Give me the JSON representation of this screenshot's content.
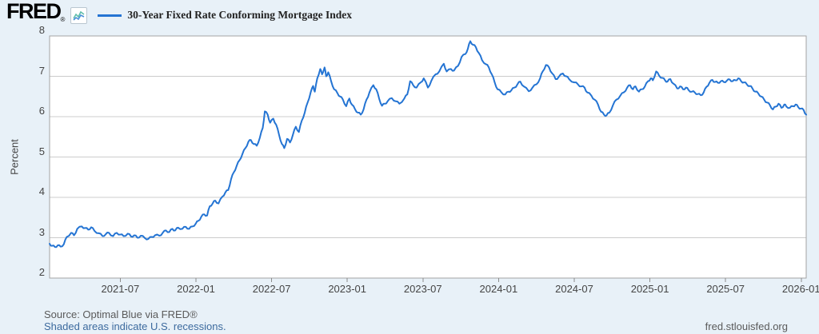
{
  "header": {
    "logo_text": "FRED",
    "logo_registered": "®",
    "legend": {
      "series_label": "30-Year Fixed Rate Conforming Mortgage Index",
      "swatch_color": "#2474d3"
    }
  },
  "chart_data": {
    "type": "line",
    "title": "30-Year Fixed Rate Conforming Mortgage Index",
    "xlabel": "",
    "ylabel": "Percent",
    "ylim": [
      2,
      8
    ],
    "y_ticks": [
      2,
      3,
      4,
      5,
      6,
      7,
      8
    ],
    "y_gridlines": [
      3,
      4,
      5,
      6,
      7
    ],
    "x_ticks": [
      "2021-07",
      "2022-01",
      "2022-07",
      "2023-01",
      "2023-07",
      "2024-01",
      "2024-07",
      "2025-01",
      "2025-07",
      "2026-01"
    ],
    "x_domain": [
      "2021-01-13",
      "2026-01-13"
    ],
    "grid": "horizontal",
    "legend_position": "top-header",
    "series": [
      {
        "name": "30-Year Fixed Rate Conforming Mortgage Index",
        "color": "#2474d3",
        "points": [
          [
            "2021-01-13",
            2.85
          ],
          [
            "2021-01-19",
            2.8
          ],
          [
            "2021-01-26",
            2.77
          ],
          [
            "2021-02-02",
            2.81
          ],
          [
            "2021-02-09",
            2.78
          ],
          [
            "2021-02-17",
            2.84
          ],
          [
            "2021-02-24",
            3.02
          ],
          [
            "2021-03-04",
            3.12
          ],
          [
            "2021-03-11",
            3.06
          ],
          [
            "2021-03-19",
            3.22
          ],
          [
            "2021-03-30",
            3.28
          ],
          [
            "2021-04-07",
            3.24
          ],
          [
            "2021-04-15",
            3.2
          ],
          [
            "2021-04-22",
            3.26
          ],
          [
            "2021-04-30",
            3.17
          ],
          [
            "2021-05-10",
            3.11
          ],
          [
            "2021-05-19",
            3.04
          ],
          [
            "2021-05-27",
            3.09
          ],
          [
            "2021-06-04",
            3.12
          ],
          [
            "2021-06-14",
            3.04
          ],
          [
            "2021-06-23",
            3.12
          ],
          [
            "2021-07-01",
            3.08
          ],
          [
            "2021-07-09",
            3.04
          ],
          [
            "2021-07-19",
            3.1
          ],
          [
            "2021-07-27",
            3.03
          ],
          [
            "2021-08-04",
            3.06
          ],
          [
            "2021-08-12",
            3.0
          ],
          [
            "2021-08-20",
            3.05
          ],
          [
            "2021-08-30",
            2.99
          ],
          [
            "2021-09-08",
            2.97
          ],
          [
            "2021-09-16",
            3.02
          ],
          [
            "2021-09-24",
            3.06
          ],
          [
            "2021-10-04",
            3.05
          ],
          [
            "2021-10-12",
            3.12
          ],
          [
            "2021-10-20",
            3.18
          ],
          [
            "2021-10-28",
            3.14
          ],
          [
            "2021-11-05",
            3.22
          ],
          [
            "2021-11-12",
            3.18
          ],
          [
            "2021-11-19",
            3.25
          ],
          [
            "2021-11-29",
            3.22
          ],
          [
            "2021-12-07",
            3.27
          ],
          [
            "2021-12-15",
            3.22
          ],
          [
            "2021-12-23",
            3.28
          ],
          [
            "2021-12-31",
            3.35
          ],
          [
            "2022-01-07",
            3.42
          ],
          [
            "2022-01-14",
            3.52
          ],
          [
            "2022-01-21",
            3.58
          ],
          [
            "2022-01-28",
            3.55
          ],
          [
            "2022-02-04",
            3.78
          ],
          [
            "2022-02-11",
            3.85
          ],
          [
            "2022-02-17",
            3.92
          ],
          [
            "2022-02-25",
            3.85
          ],
          [
            "2022-03-04",
            4.02
          ],
          [
            "2022-03-11",
            4.12
          ],
          [
            "2022-03-18",
            4.18
          ],
          [
            "2022-03-25",
            4.45
          ],
          [
            "2022-04-01",
            4.62
          ],
          [
            "2022-04-08",
            4.78
          ],
          [
            "2022-04-15",
            4.92
          ],
          [
            "2022-04-22",
            5.08
          ],
          [
            "2022-04-29",
            5.22
          ],
          [
            "2022-05-06",
            5.38
          ],
          [
            "2022-05-12",
            5.42
          ],
          [
            "2022-05-19",
            5.32
          ],
          [
            "2022-05-26",
            5.28
          ],
          [
            "2022-06-03",
            5.48
          ],
          [
            "2022-06-10",
            5.72
          ],
          [
            "2022-06-15",
            6.13
          ],
          [
            "2022-06-22",
            6.05
          ],
          [
            "2022-06-28",
            5.85
          ],
          [
            "2022-07-05",
            5.95
          ],
          [
            "2022-07-12",
            5.8
          ],
          [
            "2022-07-19",
            5.55
          ],
          [
            "2022-07-26",
            5.32
          ],
          [
            "2022-08-01",
            5.22
          ],
          [
            "2022-08-08",
            5.45
          ],
          [
            "2022-08-15",
            5.36
          ],
          [
            "2022-08-22",
            5.55
          ],
          [
            "2022-08-29",
            5.75
          ],
          [
            "2022-09-06",
            5.62
          ],
          [
            "2022-09-13",
            5.9
          ],
          [
            "2022-09-20",
            6.1
          ],
          [
            "2022-09-27",
            6.35
          ],
          [
            "2022-10-04",
            6.6
          ],
          [
            "2022-10-10",
            6.76
          ],
          [
            "2022-10-14",
            6.62
          ],
          [
            "2022-10-20",
            6.95
          ],
          [
            "2022-10-27",
            7.18
          ],
          [
            "2022-11-01",
            7.05
          ],
          [
            "2022-11-07",
            7.22
          ],
          [
            "2022-11-11",
            7.0
          ],
          [
            "2022-11-16",
            7.1
          ],
          [
            "2022-11-23",
            6.88
          ],
          [
            "2022-11-30",
            6.68
          ],
          [
            "2022-12-08",
            6.58
          ],
          [
            "2022-12-14",
            6.5
          ],
          [
            "2022-12-21",
            6.42
          ],
          [
            "2022-12-29",
            6.26
          ],
          [
            "2023-01-06",
            6.45
          ],
          [
            "2023-01-12",
            6.3
          ],
          [
            "2023-01-20",
            6.18
          ],
          [
            "2023-01-27",
            6.1
          ],
          [
            "2023-02-03",
            6.05
          ],
          [
            "2023-02-10",
            6.18
          ],
          [
            "2023-02-17",
            6.42
          ],
          [
            "2023-02-24",
            6.6
          ],
          [
            "2023-03-03",
            6.78
          ],
          [
            "2023-03-10",
            6.68
          ],
          [
            "2023-03-17",
            6.45
          ],
          [
            "2023-03-24",
            6.27
          ],
          [
            "2023-03-31",
            6.32
          ],
          [
            "2023-04-07",
            6.38
          ],
          [
            "2023-04-17",
            6.46
          ],
          [
            "2023-04-27",
            6.38
          ],
          [
            "2023-05-05",
            6.32
          ],
          [
            "2023-05-17",
            6.45
          ],
          [
            "2023-05-24",
            6.55
          ],
          [
            "2023-05-31",
            6.88
          ],
          [
            "2023-06-08",
            6.78
          ],
          [
            "2023-06-16",
            6.72
          ],
          [
            "2023-06-26",
            6.85
          ],
          [
            "2023-07-03",
            6.95
          ],
          [
            "2023-07-13",
            6.72
          ],
          [
            "2023-07-21",
            6.88
          ],
          [
            "2023-08-01",
            7.05
          ],
          [
            "2023-08-10",
            7.12
          ],
          [
            "2023-08-21",
            7.31
          ],
          [
            "2023-08-28",
            7.12
          ],
          [
            "2023-09-08",
            7.18
          ],
          [
            "2023-09-15",
            7.14
          ],
          [
            "2023-09-25",
            7.26
          ],
          [
            "2023-10-03",
            7.48
          ],
          [
            "2023-10-12",
            7.55
          ],
          [
            "2023-10-18",
            7.68
          ],
          [
            "2023-10-24",
            7.87
          ],
          [
            "2023-10-31",
            7.78
          ],
          [
            "2023-11-07",
            7.72
          ],
          [
            "2023-11-14",
            7.58
          ],
          [
            "2023-11-22",
            7.4
          ],
          [
            "2023-12-01",
            7.3
          ],
          [
            "2023-12-08",
            7.22
          ],
          [
            "2023-12-15",
            7.05
          ],
          [
            "2023-12-22",
            6.85
          ],
          [
            "2023-12-29",
            6.68
          ],
          [
            "2024-01-08",
            6.6
          ],
          [
            "2024-01-17",
            6.55
          ],
          [
            "2024-01-25",
            6.62
          ],
          [
            "2024-02-01",
            6.65
          ],
          [
            "2024-02-09",
            6.72
          ],
          [
            "2024-02-16",
            6.8
          ],
          [
            "2024-02-23",
            6.87
          ],
          [
            "2024-03-01",
            6.75
          ],
          [
            "2024-03-13",
            6.63
          ],
          [
            "2024-03-22",
            6.72
          ],
          [
            "2024-04-01",
            6.8
          ],
          [
            "2024-04-10",
            6.95
          ],
          [
            "2024-04-16",
            7.12
          ],
          [
            "2024-04-24",
            7.28
          ],
          [
            "2024-05-01",
            7.22
          ],
          [
            "2024-05-08",
            7.08
          ],
          [
            "2024-05-17",
            6.93
          ],
          [
            "2024-05-24",
            6.98
          ],
          [
            "2024-06-04",
            7.07
          ],
          [
            "2024-06-12",
            7.0
          ],
          [
            "2024-06-19",
            6.93
          ],
          [
            "2024-07-01",
            6.85
          ],
          [
            "2024-07-10",
            6.8
          ],
          [
            "2024-07-18",
            6.75
          ],
          [
            "2024-07-26",
            6.72
          ],
          [
            "2024-08-02",
            6.6
          ],
          [
            "2024-08-12",
            6.52
          ],
          [
            "2024-08-20",
            6.42
          ],
          [
            "2024-08-28",
            6.3
          ],
          [
            "2024-09-05",
            6.12
          ],
          [
            "2024-09-12",
            6.05
          ],
          [
            "2024-09-18",
            6.03
          ],
          [
            "2024-09-25",
            6.1
          ],
          [
            "2024-10-03",
            6.28
          ],
          [
            "2024-10-11",
            6.42
          ],
          [
            "2024-10-21",
            6.52
          ],
          [
            "2024-10-29",
            6.6
          ],
          [
            "2024-11-07",
            6.72
          ],
          [
            "2024-11-14",
            6.78
          ],
          [
            "2024-11-21",
            6.68
          ],
          [
            "2024-11-27",
            6.75
          ],
          [
            "2024-12-05",
            6.62
          ],
          [
            "2024-12-12",
            6.68
          ],
          [
            "2024-12-19",
            6.74
          ],
          [
            "2024-12-27",
            6.88
          ],
          [
            "2025-01-03",
            6.95
          ],
          [
            "2025-01-08",
            6.9
          ],
          [
            "2025-01-16",
            7.12
          ],
          [
            "2025-01-23",
            7.02
          ],
          [
            "2025-01-31",
            6.96
          ],
          [
            "2025-02-07",
            6.9
          ],
          [
            "2025-02-13",
            6.87
          ],
          [
            "2025-02-20",
            6.93
          ],
          [
            "2025-02-27",
            6.82
          ],
          [
            "2025-03-06",
            6.7
          ],
          [
            "2025-03-13",
            6.75
          ],
          [
            "2025-03-20",
            6.68
          ],
          [
            "2025-03-27",
            6.72
          ],
          [
            "2025-04-03",
            6.66
          ],
          [
            "2025-04-11",
            6.62
          ],
          [
            "2025-04-18",
            6.6
          ],
          [
            "2025-04-25",
            6.56
          ],
          [
            "2025-05-02",
            6.53
          ],
          [
            "2025-05-09",
            6.6
          ],
          [
            "2025-05-16",
            6.74
          ],
          [
            "2025-05-23",
            6.84
          ],
          [
            "2025-05-30",
            6.91
          ],
          [
            "2025-06-06",
            6.86
          ],
          [
            "2025-06-13",
            6.84
          ],
          [
            "2025-06-20",
            6.88
          ],
          [
            "2025-06-27",
            6.86
          ],
          [
            "2025-07-04",
            6.89
          ],
          [
            "2025-07-11",
            6.92
          ],
          [
            "2025-07-18",
            6.88
          ],
          [
            "2025-07-25",
            6.9
          ],
          [
            "2025-08-01",
            6.95
          ],
          [
            "2025-08-08",
            6.88
          ],
          [
            "2025-08-15",
            6.85
          ],
          [
            "2025-08-22",
            6.8
          ],
          [
            "2025-08-29",
            6.76
          ],
          [
            "2025-09-05",
            6.7
          ],
          [
            "2025-09-12",
            6.62
          ],
          [
            "2025-09-19",
            6.58
          ],
          [
            "2025-09-26",
            6.5
          ],
          [
            "2025-10-03",
            6.42
          ],
          [
            "2025-10-10",
            6.35
          ],
          [
            "2025-10-17",
            6.28
          ],
          [
            "2025-10-24",
            6.18
          ],
          [
            "2025-10-31",
            6.25
          ],
          [
            "2025-11-07",
            6.32
          ],
          [
            "2025-11-14",
            6.22
          ],
          [
            "2025-11-21",
            6.3
          ],
          [
            "2025-11-26",
            6.25
          ],
          [
            "2025-12-04",
            6.22
          ],
          [
            "2025-12-11",
            6.26
          ],
          [
            "2025-12-18",
            6.3
          ],
          [
            "2025-12-24",
            6.24
          ],
          [
            "2025-12-31",
            6.2
          ],
          [
            "2026-01-07",
            6.16
          ],
          [
            "2026-01-13",
            6.05
          ]
        ]
      }
    ]
  },
  "footer": {
    "source": "Source: Optimal Blue via FRED®",
    "note": "Shaded areas indicate U.S. recessions.",
    "site": "fred.stlouisfed.org"
  },
  "colors": {
    "background": "#e8f1f8",
    "plot_background": "#ffffff",
    "grid": "#cccccc",
    "frame": "#a3a3a3",
    "tick": "#8c8c8c",
    "line": "#2474d3",
    "axis_text": "#444444",
    "link": "#3c6a9e",
    "footer_text": "#5a5a5a"
  }
}
